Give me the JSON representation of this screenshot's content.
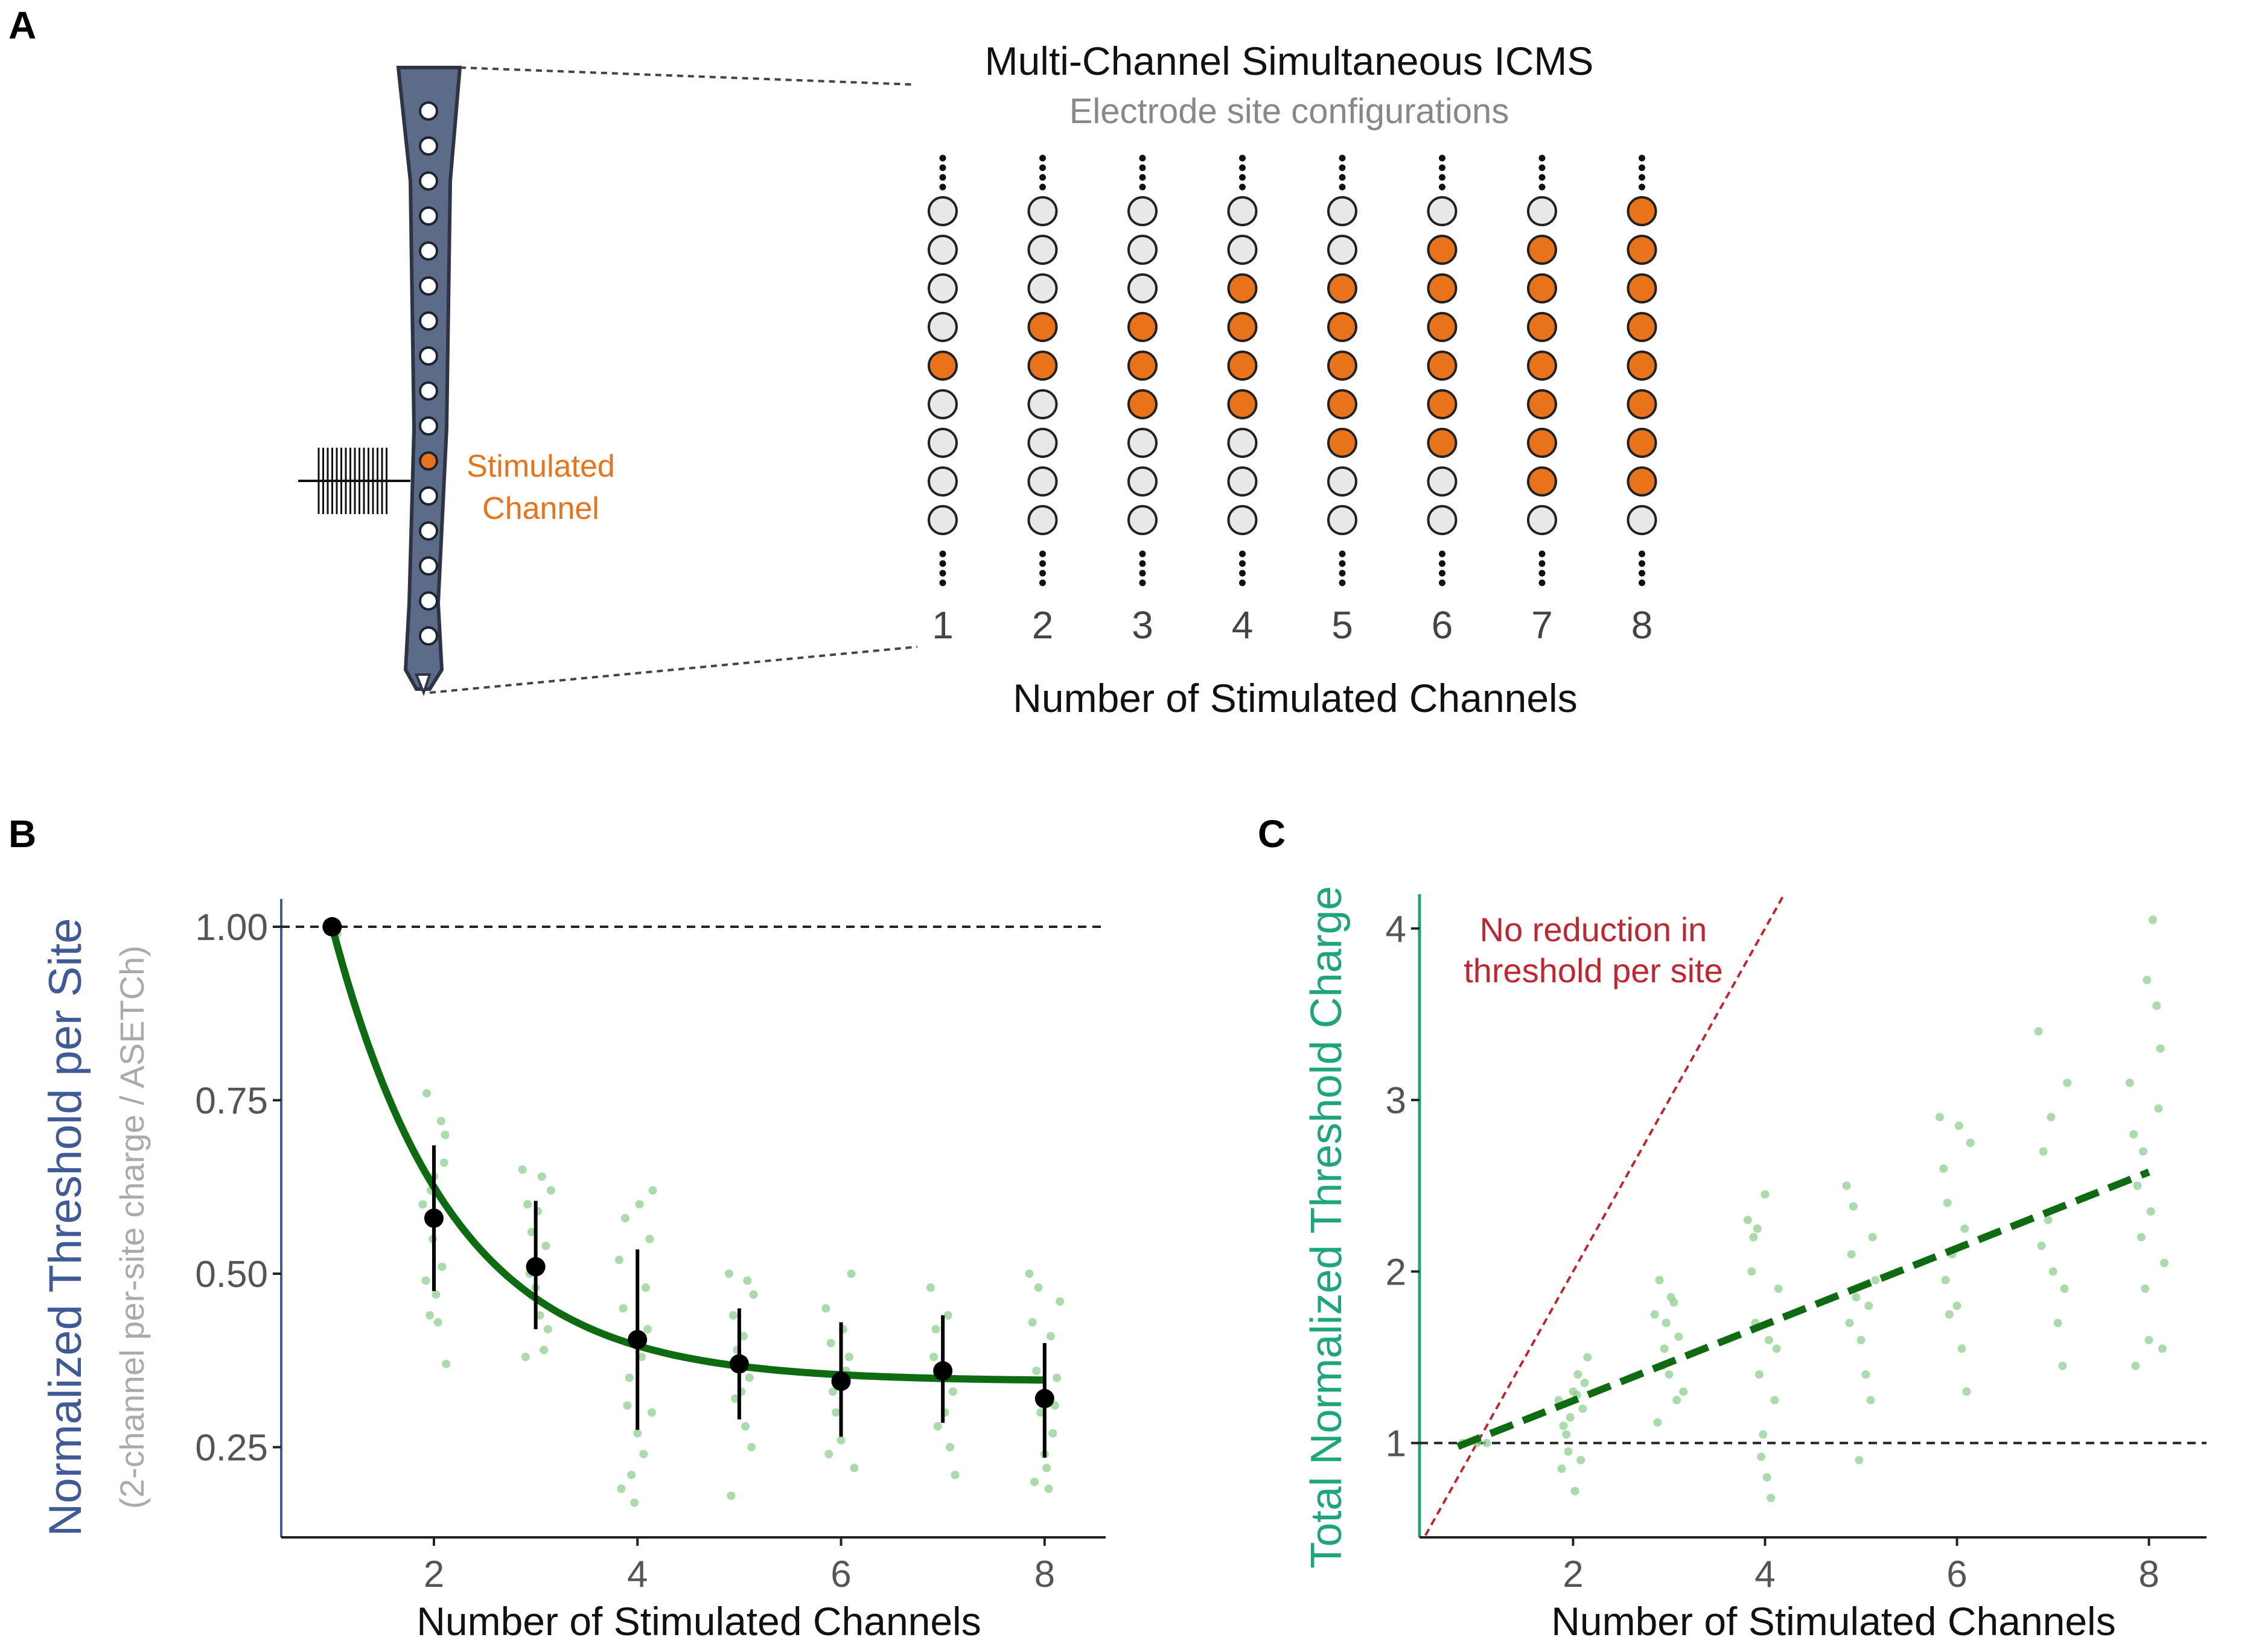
{
  "panel_labels": [
    "A",
    "B",
    "C"
  ],
  "colors": {
    "stimulated": "#e8731a",
    "inactive": "#e8e8e8",
    "probe": "#5b6b88",
    "fit_green": "#0f6b12",
    "scatter_green": "#8fcf8f",
    "ylabel_b": "#3f5a96",
    "ylabel_c": "#1fa57a",
    "reference_red": "#c0262f"
  },
  "panel_a": {
    "title": "Multi-Channel Simultaneous ICMS",
    "subtitle": "Electrode site configurations",
    "probe_label_line1": "Stimulated",
    "probe_label_line2": "Channel",
    "xlabel": "Number of Stimulated Channels",
    "columns": [
      {
        "label": "1",
        "n_stimulated": 1
      },
      {
        "label": "2",
        "n_stimulated": 2
      },
      {
        "label": "3",
        "n_stimulated": 3
      },
      {
        "label": "4",
        "n_stimulated": 4
      },
      {
        "label": "5",
        "n_stimulated": 5
      },
      {
        "label": "6",
        "n_stimulated": 6
      },
      {
        "label": "7",
        "n_stimulated": 7
      },
      {
        "label": "8",
        "n_stimulated": 8
      }
    ]
  },
  "chart_data": [
    {
      "id": "B",
      "type": "scatter",
      "title": "",
      "xlabel": "Number of Stimulated Channels",
      "ylabel": "Normalized Threshold per Site",
      "ylabel_sub": "(2-channel per-site charge / ASETCh)",
      "xlim": [
        0.5,
        8.6
      ],
      "ylim": [
        0.12,
        1.04
      ],
      "xticks": [
        2,
        4,
        6,
        8
      ],
      "ytick_labels": [
        "0.25",
        "0.50",
        "0.75",
        "1.00"
      ],
      "yticks": [
        0.25,
        0.5,
        0.75,
        1.0
      ],
      "reference_line": {
        "y": 1.0,
        "style": "dashed"
      },
      "means": {
        "x": [
          1,
          2,
          3,
          4,
          5,
          6,
          7,
          8
        ],
        "y": [
          1.0,
          0.58,
          0.51,
          0.405,
          0.37,
          0.345,
          0.36,
          0.32
        ],
        "err_low": [
          1.0,
          0.475,
          0.42,
          0.275,
          0.29,
          0.265,
          0.285,
          0.235
        ],
        "err_high": [
          1.0,
          0.685,
          0.605,
          0.535,
          0.45,
          0.43,
          0.44,
          0.4
        ]
      },
      "fit": {
        "type": "exponential",
        "plateau": 0.345,
        "amplitude": 0.655,
        "rate": 0.85
      },
      "points": [
        [
          1.0,
          1.0
        ],
        [
          1.05,
          0.99
        ],
        [
          0.95,
          1.0
        ],
        [
          1.93,
          0.76
        ],
        [
          1.97,
          0.62
        ],
        [
          2.0,
          0.64
        ],
        [
          2.03,
          0.58
        ],
        [
          2.07,
          0.72
        ],
        [
          2.11,
          0.7
        ],
        [
          1.89,
          0.6
        ],
        [
          1.92,
          0.49
        ],
        [
          1.96,
          0.44
        ],
        [
          2.02,
          0.47
        ],
        [
          2.08,
          0.51
        ],
        [
          2.12,
          0.37
        ],
        [
          2.04,
          0.43
        ],
        [
          1.99,
          0.55
        ],
        [
          2.1,
          0.66
        ],
        [
          2.87,
          0.65
        ],
        [
          2.92,
          0.6
        ],
        [
          2.96,
          0.56
        ],
        [
          3.0,
          0.48
        ],
        [
          3.04,
          0.44
        ],
        [
          3.08,
          0.39
        ],
        [
          3.12,
          0.42
        ],
        [
          3.15,
          0.62
        ],
        [
          2.9,
          0.38
        ],
        [
          3.06,
          0.64
        ],
        [
          3.1,
          0.54
        ],
        [
          2.94,
          0.5
        ],
        [
          3.02,
          0.59
        ],
        [
          3.82,
          0.52
        ],
        [
          3.86,
          0.45
        ],
        [
          3.9,
          0.31
        ],
        [
          3.94,
          0.21
        ],
        [
          3.97,
          0.17
        ],
        [
          4.0,
          0.27
        ],
        [
          4.04,
          0.38
        ],
        [
          4.08,
          0.48
        ],
        [
          4.12,
          0.55
        ],
        [
          4.15,
          0.62
        ],
        [
          3.88,
          0.58
        ],
        [
          4.1,
          0.42
        ],
        [
          4.06,
          0.24
        ],
        [
          3.84,
          0.19
        ],
        [
          3.92,
          0.35
        ],
        [
          4.02,
          0.6
        ],
        [
          4.14,
          0.3
        ],
        [
          4.9,
          0.5
        ],
        [
          4.94,
          0.44
        ],
        [
          4.98,
          0.39
        ],
        [
          5.02,
          0.33
        ],
        [
          5.06,
          0.28
        ],
        [
          5.1,
          0.35
        ],
        [
          5.14,
          0.47
        ],
        [
          4.92,
          0.18
        ],
        [
          5.04,
          0.41
        ],
        [
          5.12,
          0.25
        ],
        [
          4.96,
          0.32
        ],
        [
          5.08,
          0.49
        ],
        [
          5.85,
          0.45
        ],
        [
          5.9,
          0.4
        ],
        [
          5.95,
          0.3
        ],
        [
          6.0,
          0.26
        ],
        [
          6.05,
          0.36
        ],
        [
          6.1,
          0.5
        ],
        [
          6.13,
          0.22
        ],
        [
          5.92,
          0.33
        ],
        [
          6.02,
          0.42
        ],
        [
          6.08,
          0.38
        ],
        [
          5.88,
          0.24
        ],
        [
          6.88,
          0.48
        ],
        [
          6.93,
          0.42
        ],
        [
          6.97,
          0.35
        ],
        [
          7.02,
          0.3
        ],
        [
          7.07,
          0.25
        ],
        [
          7.12,
          0.21
        ],
        [
          6.91,
          0.38
        ],
        [
          7.05,
          0.44
        ],
        [
          7.1,
          0.33
        ],
        [
          6.95,
          0.28
        ],
        [
          7.85,
          0.5
        ],
        [
          7.88,
          0.43
        ],
        [
          7.92,
          0.36
        ],
        [
          7.96,
          0.3
        ],
        [
          8.0,
          0.24
        ],
        [
          8.04,
          0.19
        ],
        [
          8.08,
          0.27
        ],
        [
          8.12,
          0.35
        ],
        [
          8.15,
          0.46
        ],
        [
          7.9,
          0.2
        ],
        [
          8.06,
          0.41
        ],
        [
          8.1,
          0.31
        ],
        [
          7.94,
          0.48
        ],
        [
          8.02,
          0.22
        ]
      ]
    },
    {
      "id": "C",
      "type": "scatter",
      "title": "",
      "xlabel": "Number of Stimulated Channels",
      "ylabel": "Total Normalized Threshold Charge",
      "xlim": [
        0.4,
        8.6
      ],
      "ylim": [
        0.45,
        4.2
      ],
      "xticks": [
        2,
        4,
        6,
        8
      ],
      "yticks": [
        1,
        2,
        3,
        4
      ],
      "reference_line": {
        "y": 1,
        "style": "dashed"
      },
      "no_reduction_line": {
        "slope": 1,
        "intercept": 0,
        "style": "dashed"
      },
      "annotation_line1": "No reduction in",
      "annotation_line2": "threshold per site",
      "trend_line": {
        "x": [
          0.8,
          8.0
        ],
        "y": [
          0.98,
          2.58
        ],
        "style": "dashed"
      },
      "points": [
        [
          0.85,
          1.0
        ],
        [
          1.0,
          1.0
        ],
        [
          1.1,
          1.0
        ],
        [
          1.85,
          1.25
        ],
        [
          1.9,
          1.1
        ],
        [
          1.95,
          0.95
        ],
        [
          2.0,
          1.3
        ],
        [
          2.05,
          1.4
        ],
        [
          2.1,
          1.2
        ],
        [
          2.15,
          1.5
        ],
        [
          1.88,
          0.85
        ],
        [
          1.93,
          1.05
        ],
        [
          2.02,
          0.72
        ],
        [
          2.08,
          0.9
        ],
        [
          2.12,
          1.35
        ],
        [
          1.97,
          1.15
        ],
        [
          2.04,
          1.28
        ],
        [
          2.85,
          1.75
        ],
        [
          2.9,
          1.95
        ],
        [
          2.95,
          1.55
        ],
        [
          3.0,
          1.4
        ],
        [
          3.05,
          1.82
        ],
        [
          3.1,
          1.62
        ],
        [
          3.15,
          1.3
        ],
        [
          2.88,
          1.12
        ],
        [
          2.93,
          1.45
        ],
        [
          3.02,
          1.85
        ],
        [
          3.08,
          1.25
        ],
        [
          2.97,
          1.7
        ],
        [
          3.82,
          2.3
        ],
        [
          3.86,
          2.0
        ],
        [
          3.9,
          1.7
        ],
        [
          3.94,
          1.4
        ],
        [
          3.98,
          1.05
        ],
        [
          4.02,
          0.8
        ],
        [
          4.06,
          0.68
        ],
        [
          4.1,
          1.25
        ],
        [
          4.14,
          1.9
        ],
        [
          3.88,
          2.2
        ],
        [
          4.0,
          2.45
        ],
        [
          4.04,
          1.6
        ],
        [
          3.92,
          2.25
        ],
        [
          4.12,
          1.55
        ],
        [
          3.96,
          0.92
        ],
        [
          4.85,
          2.5
        ],
        [
          4.9,
          2.1
        ],
        [
          4.95,
          1.85
        ],
        [
          5.0,
          1.6
        ],
        [
          5.05,
          1.4
        ],
        [
          5.1,
          1.25
        ],
        [
          5.15,
          1.95
        ],
        [
          4.88,
          1.7
        ],
        [
          4.98,
          0.9
        ],
        [
          5.08,
          1.8
        ],
        [
          5.12,
          2.2
        ],
        [
          4.92,
          2.38
        ],
        [
          5.82,
          2.9
        ],
        [
          5.86,
          2.6
        ],
        [
          5.9,
          2.4
        ],
        [
          5.95,
          2.1
        ],
        [
          6.0,
          1.8
        ],
        [
          6.05,
          1.55
        ],
        [
          6.1,
          1.3
        ],
        [
          6.14,
          2.75
        ],
        [
          5.88,
          1.95
        ],
        [
          6.02,
          2.85
        ],
        [
          6.08,
          2.25
        ],
        [
          5.92,
          1.75
        ],
        [
          6.85,
          3.4
        ],
        [
          6.9,
          2.7
        ],
        [
          6.95,
          2.3
        ],
        [
          7.0,
          2.0
        ],
        [
          7.05,
          1.7
        ],
        [
          7.1,
          1.45
        ],
        [
          7.15,
          3.1
        ],
        [
          6.88,
          2.15
        ],
        [
          6.98,
          2.9
        ],
        [
          7.12,
          1.9
        ],
        [
          7.8,
          3.1
        ],
        [
          7.84,
          2.8
        ],
        [
          7.88,
          2.5
        ],
        [
          7.92,
          2.2
        ],
        [
          7.96,
          1.9
        ],
        [
          8.0,
          1.6
        ],
        [
          8.04,
          4.05
        ],
        [
          8.08,
          3.55
        ],
        [
          8.12,
          3.3
        ],
        [
          8.16,
          2.05
        ],
        [
          7.86,
          1.45
        ],
        [
          7.94,
          2.7
        ],
        [
          8.02,
          2.35
        ],
        [
          8.1,
          2.95
        ],
        [
          8.14,
          1.55
        ],
        [
          7.98,
          3.7
        ]
      ]
    }
  ]
}
